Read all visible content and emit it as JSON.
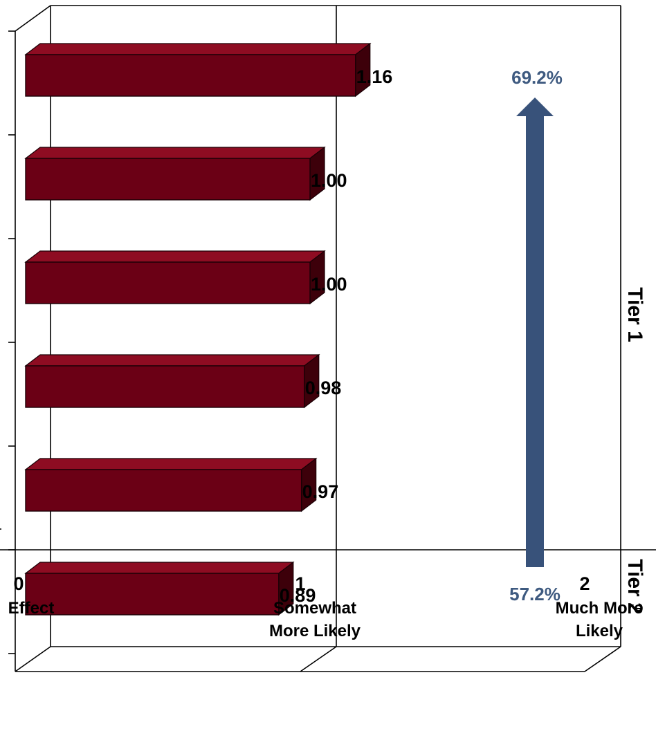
{
  "chart_data": {
    "type": "bar",
    "orientation": "horizontal",
    "style": "3d",
    "values": [
      1.16,
      1.0,
      1.0,
      0.98,
      0.97,
      0.89
    ],
    "value_labels": [
      "1.16",
      "1.00",
      "1.00",
      "0.98",
      "0.97",
      "0.89"
    ],
    "xlim": [
      0,
      2
    ],
    "x_ticks": [
      {
        "value": 0,
        "number": "0",
        "label": "Effect"
      },
      {
        "value": 1,
        "number": "1",
        "label": "Somewhat More  Likely"
      },
      {
        "value": 2,
        "number": "2",
        "label": "Much More Likely"
      }
    ],
    "tiers": [
      {
        "label": "Tier 1",
        "bars": [
          0,
          1,
          2,
          3,
          4
        ]
      },
      {
        "label": "Tier 2",
        "bars": [
          5
        ]
      }
    ],
    "annotation": {
      "top": "69.2%",
      "bottom": "57.2%",
      "arrow_direction": "up"
    },
    "grid": false,
    "colors": {
      "bar_front": "#6b0015",
      "bar_top": "#8e0c22",
      "bar_side": "#3d000a",
      "arrow": "#38527a",
      "annotation_text": "#3e5a80"
    }
  }
}
